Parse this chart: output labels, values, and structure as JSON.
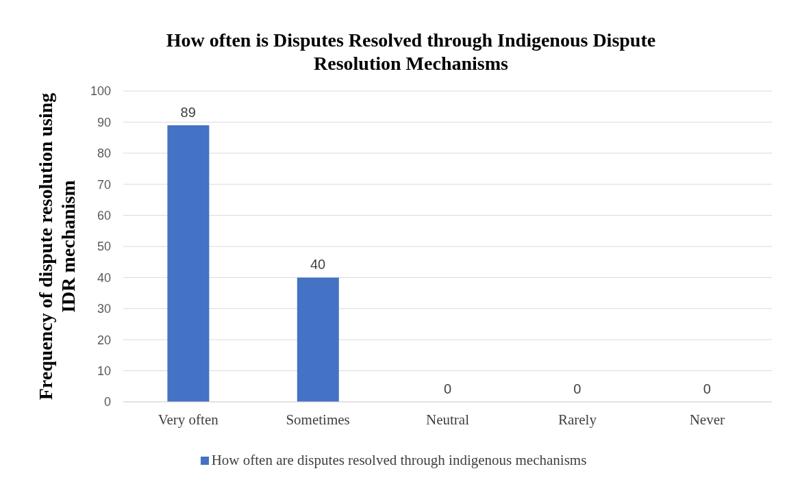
{
  "chart_data": {
    "type": "bar",
    "title": "How often is Disputes Resolved through Indigenous Dispute Resolution Mechanisms",
    "ylabel": "Frequency of  dispute resolution using IDR mechanism",
    "categories": [
      "Very often",
      "Sometimes",
      "Neutral",
      "Rarely",
      "Never"
    ],
    "series": [
      {
        "name": "How often are disputes resolved through indigenous mechanisms",
        "color": "#4472c4",
        "values": [
          89,
          40,
          0,
          0,
          0
        ]
      }
    ],
    "ylim": [
      0,
      100
    ],
    "yticks": [
      0,
      10,
      20,
      30,
      40,
      50,
      60,
      70,
      80,
      90,
      100
    ],
    "grid": "y",
    "legend": "bottom",
    "data_labels": true
  }
}
